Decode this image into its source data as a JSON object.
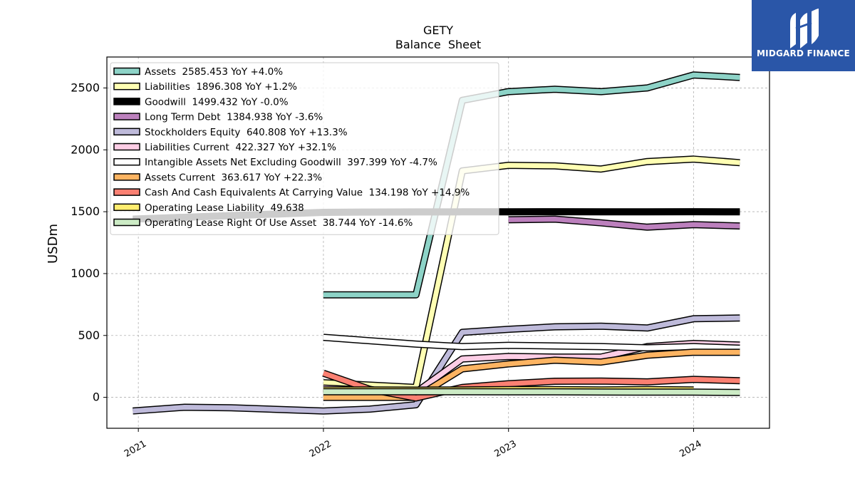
{
  "chart_data": {
    "type": "line",
    "title": "GETY",
    "subtitle": "Balance  Sheet",
    "ylabel": "USDm",
    "xlabel": "",
    "ylim": [
      -250,
      2750
    ],
    "xlim": [
      2020.83,
      2024.41
    ],
    "yticks": [
      0,
      500,
      1000,
      1500,
      2000,
      2500
    ],
    "xticks": [
      {
        "label": "2021",
        "value": 2021.0
      },
      {
        "label": "2022",
        "value": 2022.0
      },
      {
        "label": "2023",
        "value": 2023.0
      },
      {
        "label": "2024",
        "value": 2024.0
      }
    ],
    "grid": true,
    "legend_position": "top-left",
    "series": [
      {
        "name": "Assets  2585.453 YoY +4.0%",
        "color": "#8dd3c7",
        "width": 7,
        "x": [
          2022.0,
          2022.5,
          2022.75,
          2023.0,
          2023.25,
          2023.5,
          2023.75,
          2024.0,
          2024.25
        ],
        "y": [
          828,
          828,
          2400,
          2470,
          2490,
          2470,
          2500,
          2605,
          2585
        ]
      },
      {
        "name": "Liabilities  1896.308 YoY +1.2%",
        "color": "#ffffb3",
        "width": 7,
        "x": [
          2022.0,
          2022.5,
          2022.75,
          2023.0,
          2023.25,
          2023.5,
          2023.75,
          2024.0,
          2024.25
        ],
        "y": [
          118,
          80,
          1830,
          1875,
          1870,
          1845,
          1905,
          1925,
          1896
        ]
      },
      {
        "name": "Goodwill  1499.432 YoY -0.0%",
        "color": "#000000",
        "width": 7,
        "x": [
          2020.97,
          2022.0,
          2022.25,
          2022.5,
          2022.75,
          2023.0,
          2023.25,
          2023.5,
          2023.75,
          2024.0,
          2024.25
        ],
        "y": [
          1440,
          1495,
          1497,
          1498,
          1499,
          1499,
          1500,
          1499,
          1499,
          1500,
          1499
        ]
      },
      {
        "name": "Long Term Debt  1384.938 YoY -3.6%",
        "color": "#bc80bd",
        "width": 7,
        "x": [
          2023.0,
          2023.25,
          2023.5,
          2023.75,
          2024.0,
          2024.25
        ],
        "y": [
          1435,
          1440,
          1410,
          1375,
          1395,
          1385
        ]
      },
      {
        "name": "Stockholders Equity  640.808 YoY +13.3%",
        "color": "#bebada",
        "width": 7,
        "x": [
          2020.97,
          2021.25,
          2021.5,
          2022.0,
          2022.25,
          2022.5,
          2022.75,
          2023.0,
          2023.25,
          2023.5,
          2023.75,
          2024.0,
          2024.25
        ],
        "y": [
          -110,
          -80,
          -85,
          -110,
          -95,
          -60,
          525,
          550,
          570,
          575,
          560,
          635,
          641
        ]
      },
      {
        "name": "Liabilities Current  422.327 YoY +32.1%",
        "color": "#fccde5",
        "width": 7,
        "x": [
          2022.0,
          2022.5,
          2022.75,
          2023.0,
          2023.25,
          2023.5,
          2023.75,
          2024.0,
          2024.25
        ],
        "y": [
          75,
          40,
          310,
          330,
          325,
          325,
          410,
          435,
          422
        ]
      },
      {
        "name": "Intangible Assets Net Excluding Goodwill  397.399 YoY -4.7%",
        "color": "#ffffff",
        "width": 7,
        "x": [
          2022.0,
          2022.5,
          2022.75,
          2023.0,
          2023.25,
          2023.5,
          2023.75,
          2024.0,
          2024.25
        ],
        "y": [
          485,
          430,
          410,
          420,
          415,
          410,
          400,
          410,
          397
        ]
      },
      {
        "name": "Assets Current  363.617 YoY +22.3%",
        "color": "#fdb462",
        "width": 7,
        "x": [
          2022.0,
          2022.5,
          2022.75,
          2023.0,
          2023.25,
          2023.5,
          2023.75,
          2024.0,
          2024.25
        ],
        "y": [
          0,
          0,
          230,
          270,
          300,
          285,
          340,
          365,
          364
        ]
      },
      {
        "name": "Cash And Cash Equivalents At Carrying Value  134.198 YoY +14.9%",
        "color": "#fb8072",
        "width": 7,
        "x": [
          2022.0,
          2022.25,
          2022.5,
          2022.75,
          2023.0,
          2023.25,
          2023.5,
          2023.75,
          2024.0,
          2024.25
        ],
        "y": [
          195,
          65,
          -5,
          80,
          110,
          130,
          132,
          125,
          145,
          134
        ]
      },
      {
        "name": "Operating Lease Liability  49.638",
        "color": "#ffed6f",
        "width": 7,
        "x": [
          2022.0,
          2022.25,
          2022.5,
          2022.75,
          2023.0,
          2023.25,
          2023.5,
          2023.75,
          2024.0
        ],
        "y": [
          60,
          60,
          58,
          60,
          62,
          62,
          60,
          62,
          60
        ]
      },
      {
        "name": "Operating Lease Right Of Use Asset  38.744 YoY -14.6%",
        "color": "#ccebc5",
        "width": 7,
        "x": [
          2022.0,
          2022.5,
          2022.75,
          2023.0,
          2023.25,
          2023.5,
          2023.75,
          2024.0,
          2024.25
        ],
        "y": [
          45,
          45,
          45,
          44,
          44,
          43,
          42,
          42,
          39
        ]
      }
    ]
  },
  "logo": {
    "text": "MIDGARD FINANCE",
    "icon": "midgard-logo-icon",
    "background": "#2a56a8"
  }
}
